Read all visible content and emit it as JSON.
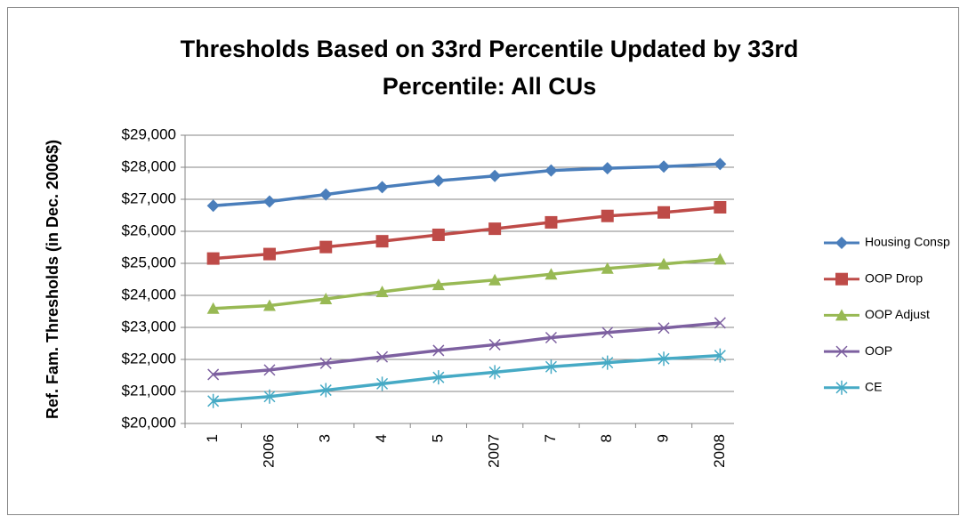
{
  "chart_data": {
    "type": "line",
    "title": "Thresholds Based on 33rd Percentile Updated by 33rd Percentile: All CUs",
    "y_label": "Ref. Fam. Thresholds (in Dec. 2006$)",
    "categories": [
      "1",
      "2006",
      "3",
      "4",
      "5",
      "2007",
      "7",
      "8",
      "9",
      "2008"
    ],
    "series": [
      {
        "name": "Housing Consp",
        "color": "#4a7ebb",
        "marker": "diamond",
        "values": [
          26800,
          26930,
          27150,
          27380,
          27580,
          27730,
          27900,
          27970,
          28020,
          28100
        ]
      },
      {
        "name": "OOP Drop",
        "color": "#be4b48",
        "marker": "square",
        "values": [
          25150,
          25290,
          25510,
          25690,
          25890,
          26080,
          26280,
          26480,
          26590,
          26750
        ]
      },
      {
        "name": "OOP Adjust",
        "color": "#98b954",
        "marker": "triangle",
        "values": [
          23590,
          23680,
          23890,
          24110,
          24330,
          24480,
          24660,
          24840,
          24980,
          25130
        ]
      },
      {
        "name": "OOP",
        "color": "#7d60a0",
        "marker": "x",
        "values": [
          21530,
          21670,
          21880,
          22080,
          22280,
          22460,
          22680,
          22840,
          22980,
          23140
        ]
      },
      {
        "name": "CE",
        "color": "#46aac5",
        "marker": "star",
        "values": [
          20700,
          20840,
          21040,
          21240,
          21440,
          21600,
          21770,
          21900,
          22020,
          22120
        ]
      }
    ],
    "ylim": [
      20000,
      29000
    ],
    "yticks": [
      {
        "value": 20000,
        "label": "$20,000"
      },
      {
        "value": 21000,
        "label": "$21,000"
      },
      {
        "value": 22000,
        "label": "$22,000"
      },
      {
        "value": 23000,
        "label": "$23,000"
      },
      {
        "value": 24000,
        "label": "$24,000"
      },
      {
        "value": 25000,
        "label": "$25,000"
      },
      {
        "value": 26000,
        "label": "$26,000"
      },
      {
        "value": 27000,
        "label": "$27,000"
      },
      {
        "value": 28000,
        "label": "$28,000"
      },
      {
        "value": 29000,
        "label": "$29,000"
      }
    ],
    "grid": true,
    "legend": "right"
  }
}
